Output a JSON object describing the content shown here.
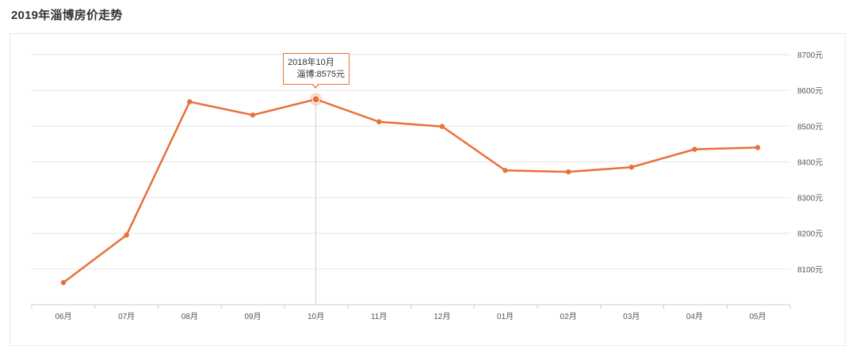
{
  "title": "2019年淄博房价走势",
  "colors": {
    "line": "#e8703a",
    "grid": "#e6e6e6",
    "axis": "#cccccc",
    "text": "#333333"
  },
  "tooltip": {
    "date": "2018年10月",
    "series_label": "淄博",
    "value_text": "8575元",
    "index": 4
  },
  "chart_data": {
    "type": "line",
    "title": "2019年淄博房价走势",
    "categories": [
      "06月",
      "07月",
      "08月",
      "09月",
      "10月",
      "11月",
      "12月",
      "01月",
      "02月",
      "03月",
      "04月",
      "05月"
    ],
    "series": [
      {
        "name": "淄博",
        "values": [
          8062,
          8195,
          8568,
          8531,
          8575,
          8512,
          8499,
          8376,
          8372,
          8385,
          8435,
          8440
        ]
      }
    ],
    "y_unit": "元",
    "y_ticks": [
      8100,
      8200,
      8300,
      8400,
      8500,
      8600,
      8700
    ],
    "ylim": [
      8000,
      8700
    ],
    "y_axis_position": "right",
    "grid": true,
    "legend": "none"
  }
}
